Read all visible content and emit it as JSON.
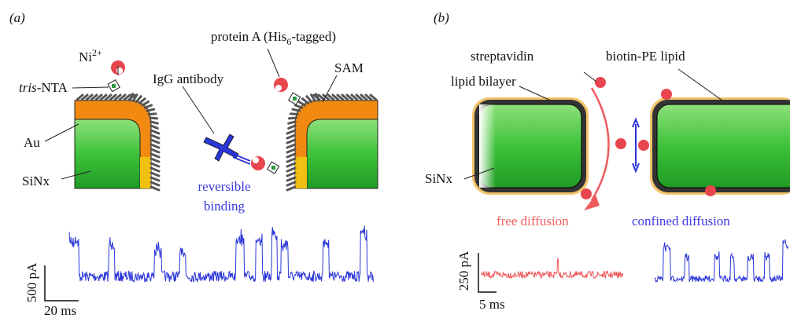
{
  "panel_a": {
    "label": "(a)",
    "ni": {
      "base": "Ni",
      "sup": "2+"
    },
    "tris_nta": {
      "italic": "tris",
      "rest": "-NTA"
    },
    "protein_a": {
      "before": "protein A (His",
      "sub": "6",
      "after": "-tagged)"
    },
    "igg": "IgG antibody",
    "sam": "SAM",
    "au": "Au",
    "sinx": "SiNx",
    "reversible": [
      "reversible",
      "binding"
    ],
    "scale_y": "500 pA",
    "scale_x": "20 ms"
  },
  "panel_b": {
    "label": "(b)",
    "streptavidin": "streptavidin",
    "biotin": "biotin-PE lipid",
    "bilayer": "lipid bilayer",
    "sinx": "SiNx",
    "free": "free diffusion",
    "confined": "confined diffusion",
    "scale_y": "250 pA",
    "scale_x": "5 ms"
  }
}
